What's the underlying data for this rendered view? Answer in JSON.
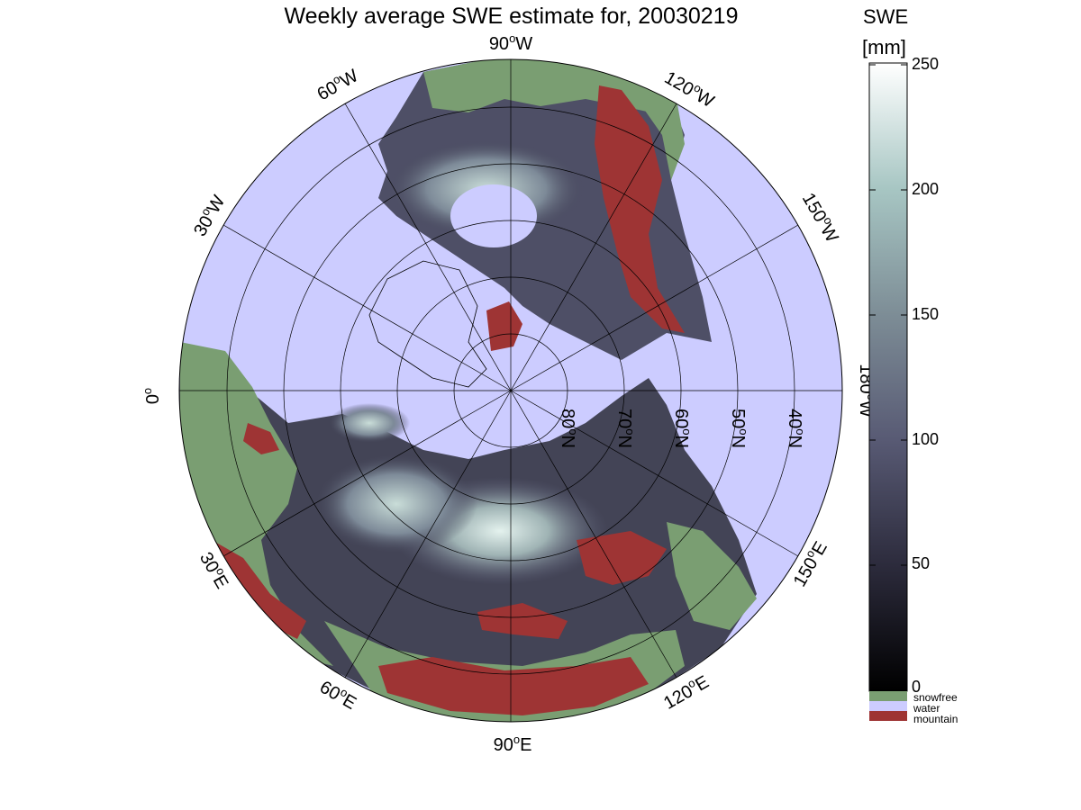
{
  "title": "Weekly average SWE estimate for, 20030219",
  "colorbar": {
    "label_line1": "SWE",
    "label_line2": "[mm]",
    "ticks": [
      "250",
      "200",
      "150",
      "100",
      "50",
      "0"
    ],
    "min": 0,
    "max": 250
  },
  "legend": [
    {
      "label": "snowfree",
      "color": "#7a9e72"
    },
    {
      "label": "water",
      "color": "#ccccff"
    },
    {
      "label": "mountain",
      "color": "#9e3434"
    }
  ],
  "map": {
    "projection": "north polar stereographic",
    "longitude_labels": [
      {
        "deg": "90",
        "hemi": "W"
      },
      {
        "deg": "120",
        "hemi": "W"
      },
      {
        "deg": "150",
        "hemi": "W"
      },
      {
        "deg": "180",
        "hemi": "W"
      },
      {
        "deg": "150",
        "hemi": "E"
      },
      {
        "deg": "120",
        "hemi": "E"
      },
      {
        "deg": "90",
        "hemi": "E"
      },
      {
        "deg": "60",
        "hemi": "E"
      },
      {
        "deg": "30",
        "hemi": "E"
      },
      {
        "deg": "0",
        "hemi": ""
      },
      {
        "deg": "30",
        "hemi": "W"
      },
      {
        "deg": "60",
        "hemi": "W"
      }
    ],
    "latitude_labels": [
      {
        "deg": "80",
        "hemi": "N"
      },
      {
        "deg": "70",
        "hemi": "N"
      },
      {
        "deg": "60",
        "hemi": "N"
      },
      {
        "deg": "50",
        "hemi": "N"
      },
      {
        "deg": "40",
        "hemi": "N"
      }
    ],
    "colors": {
      "water": "#ccccff",
      "snowfree": "#7a9e72",
      "mountain": "#9e3434",
      "swe_low": "#0e0e16",
      "swe_mid": "#5c5e78",
      "swe_high": "#d8ece8"
    }
  }
}
